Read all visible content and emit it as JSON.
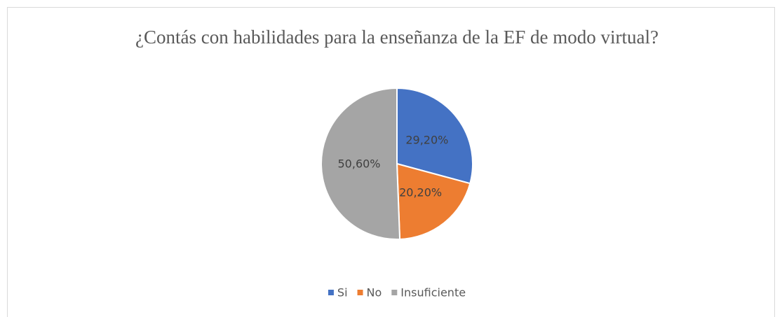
{
  "chart_data": {
    "type": "pie",
    "title": "¿Contás con habilidades para la enseñanza de la EF de modo virtual?",
    "categories": [
      "Si",
      "No",
      "Insuficiente"
    ],
    "values": [
      29.2,
      20.2,
      50.6
    ],
    "value_labels": [
      "29,20%",
      "20,20%",
      "50,60%"
    ],
    "colors": [
      "#4472c4",
      "#ed7d31",
      "#a5a5a5"
    ],
    "legend": "bottom"
  }
}
